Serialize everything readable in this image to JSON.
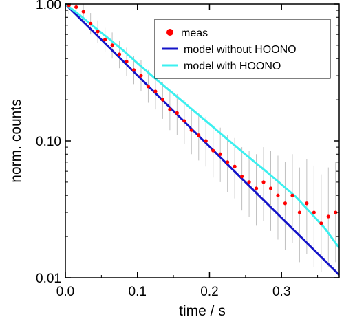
{
  "chart_data": {
    "type": "scatter",
    "xlabel": "time / s",
    "ylabel": "norm. counts",
    "xlim": [
      0,
      0.38
    ],
    "ylim": [
      0.01,
      1.0
    ],
    "yscale": "log",
    "grid": false,
    "legend_position": "top-right",
    "x_ticks": [
      0.0,
      0.1,
      0.2,
      0.3
    ],
    "x_tick_labels": [
      "0.0",
      "0.1",
      "0.2",
      "0.3"
    ],
    "y_ticks": [
      1.0,
      0.1,
      0.01
    ],
    "y_tick_labels": [
      "1.00",
      "0.10",
      "0.01"
    ],
    "series": [
      {
        "name": "meas",
        "kind": "points-with-errorbars",
        "color": "#ff0000",
        "errorbar_color": "#c0c0c0",
        "x": [
          0.005,
          0.015,
          0.025,
          0.035,
          0.045,
          0.055,
          0.065,
          0.075,
          0.085,
          0.095,
          0.105,
          0.115,
          0.125,
          0.135,
          0.145,
          0.155,
          0.165,
          0.175,
          0.185,
          0.195,
          0.205,
          0.215,
          0.225,
          0.235,
          0.245,
          0.255,
          0.265,
          0.275,
          0.285,
          0.295,
          0.305,
          0.315,
          0.325,
          0.335,
          0.345,
          0.355,
          0.365,
          0.375
        ],
        "y": [
          0.98,
          0.95,
          0.88,
          0.72,
          0.63,
          0.55,
          0.5,
          0.43,
          0.38,
          0.33,
          0.3,
          0.25,
          0.23,
          0.2,
          0.17,
          0.16,
          0.14,
          0.12,
          0.11,
          0.1,
          0.085,
          0.08,
          0.07,
          0.065,
          0.055,
          0.05,
          0.045,
          0.05,
          0.045,
          0.04,
          0.035,
          0.04,
          0.03,
          0.035,
          0.03,
          0.025,
          0.028,
          0.03
        ],
        "err_low": [
          0.85,
          0.8,
          0.72,
          0.6,
          0.52,
          0.45,
          0.4,
          0.34,
          0.3,
          0.26,
          0.23,
          0.19,
          0.17,
          0.145,
          0.12,
          0.11,
          0.095,
          0.08,
          0.072,
          0.065,
          0.054,
          0.05,
          0.042,
          0.038,
          0.031,
          0.028,
          0.024,
          0.026,
          0.022,
          0.019,
          0.016,
          0.018,
          0.013,
          0.015,
          0.012,
          0.011,
          0.012,
          0.013
        ],
        "err_high": [
          1.0,
          1.0,
          1.0,
          0.86,
          0.76,
          0.67,
          0.62,
          0.54,
          0.48,
          0.42,
          0.39,
          0.33,
          0.31,
          0.27,
          0.23,
          0.22,
          0.2,
          0.17,
          0.16,
          0.15,
          0.13,
          0.125,
          0.11,
          0.105,
          0.09,
          0.085,
          0.08,
          0.09,
          0.085,
          0.078,
          0.07,
          0.08,
          0.064,
          0.074,
          0.066,
          0.057,
          0.064,
          0.07
        ]
      },
      {
        "name": "model without HOONO",
        "kind": "line",
        "color": "#1414c8",
        "x": [
          0,
          0.38
        ],
        "y": [
          1.0,
          0.0105
        ]
      },
      {
        "name": "model with HOONO",
        "kind": "line",
        "color": "#3cf0f0",
        "x": [
          0,
          0.02,
          0.04,
          0.06,
          0.08,
          0.1,
          0.12,
          0.14,
          0.16,
          0.18,
          0.2,
          0.22,
          0.24,
          0.26,
          0.28,
          0.3,
          0.32,
          0.34,
          0.36,
          0.38
        ],
        "y": [
          1.0,
          0.83,
          0.68,
          0.56,
          0.46,
          0.37,
          0.3,
          0.245,
          0.2,
          0.163,
          0.133,
          0.108,
          0.088,
          0.072,
          0.059,
          0.048,
          0.039,
          0.03,
          0.023,
          0.0165
        ]
      }
    ]
  }
}
